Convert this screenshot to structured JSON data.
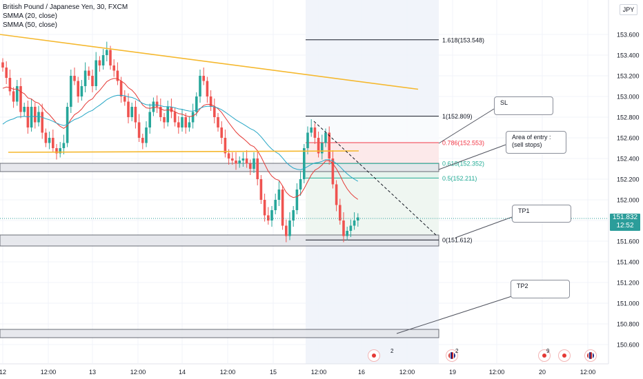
{
  "legend": {
    "symbol": "British Pound / Japanese Yen, 30, FXCM",
    "ma1": "SMMA (20, close)",
    "ma2": "SMMA (50, close)"
  },
  "currency": "JPY",
  "current_price": {
    "price": "151.832",
    "countdown": "12:52"
  },
  "colors": {
    "up": "#26a69a",
    "down": "#ef5350",
    "ma20": "#e53935",
    "ma50": "#26a6c5",
    "trend": "#f5b82e",
    "fib_black": "#131722",
    "fib_red": "#f23645",
    "fib_green": "#22ab94"
  },
  "callouts": {
    "sl": "SL",
    "entry_line1": "Area of entry :",
    "entry_line2": "(sell stops)",
    "tp1": "TP1",
    "tp2": "TP2"
  },
  "events": [
    {
      "icon": "flag-icon",
      "count": "2"
    },
    {
      "icon": "flag-icon",
      "count": "2"
    },
    {
      "icon": "dot-icon",
      "count": "9"
    },
    {
      "icon": "dot-icon",
      "count": ""
    },
    {
      "icon": "flag-icon",
      "count": ""
    }
  ],
  "chart_data": {
    "type": "candlestick",
    "title": "British Pound / Japanese Yen, 30, FXCM",
    "ylim": [
      150.5,
      153.8
    ],
    "y_ticks": [
      "153.600",
      "153.400",
      "153.200",
      "153.000",
      "152.800",
      "152.600",
      "152.400",
      "152.200",
      "152.000",
      "151.800",
      "151.600",
      "151.400",
      "151.200",
      "151.000",
      "150.800",
      "150.600"
    ],
    "x_ticks": [
      "12",
      "12:00",
      "13",
      "12:00",
      "14",
      "12:00",
      "15",
      "12:00",
      "16",
      "12:00",
      "19",
      "12:00",
      "20",
      "12:00"
    ],
    "fibonacci": [
      {
        "label": "1.618(153.548)",
        "price": 153.548
      },
      {
        "label": "1(152.809)",
        "price": 152.809
      },
      {
        "label": "0.786(152.553)",
        "price": 152.553
      },
      {
        "label": "0.618(152.352)",
        "price": 152.352
      },
      {
        "label": "0.5(152.211)",
        "price": 152.211
      },
      {
        "label": "0(151.612)",
        "price": 151.612
      }
    ],
    "close_series": [
      153.28,
      153.18,
      153.05,
      152.95,
      153.1,
      152.85,
      152.9,
      152.7,
      152.9,
      152.75,
      152.85,
      152.65,
      152.55,
      152.6,
      152.5,
      152.45,
      152.5,
      152.55,
      152.9,
      153.2,
      153.15,
      153.0,
      153.1,
      153.25,
      153.2,
      153.1,
      153.35,
      153.3,
      153.4,
      153.45,
      153.3,
      153.25,
      153.15,
      153.0,
      152.95,
      152.8,
      152.9,
      152.75,
      152.6,
      152.55,
      152.7,
      152.85,
      152.95,
      152.9,
      152.8,
      152.75,
      152.9,
      152.85,
      152.75,
      152.7,
      152.8,
      152.7,
      152.75,
      152.85,
      153.0,
      153.2,
      153.15,
      153.0,
      152.9,
      152.8,
      152.7,
      152.6,
      152.45,
      152.4,
      152.38,
      152.35,
      152.38,
      152.4,
      152.35,
      152.3,
      152.4,
      152.2,
      152.0,
      151.85,
      151.8,
      151.9,
      152.0,
      152.1,
      151.75,
      151.65,
      151.8,
      151.9,
      152.1,
      152.2,
      152.5,
      152.65,
      152.7,
      152.6,
      152.45,
      152.55,
      152.65,
      152.4,
      152.15,
      151.95,
      151.8,
      151.65,
      151.7,
      151.75,
      151.8,
      151.83
    ]
  }
}
